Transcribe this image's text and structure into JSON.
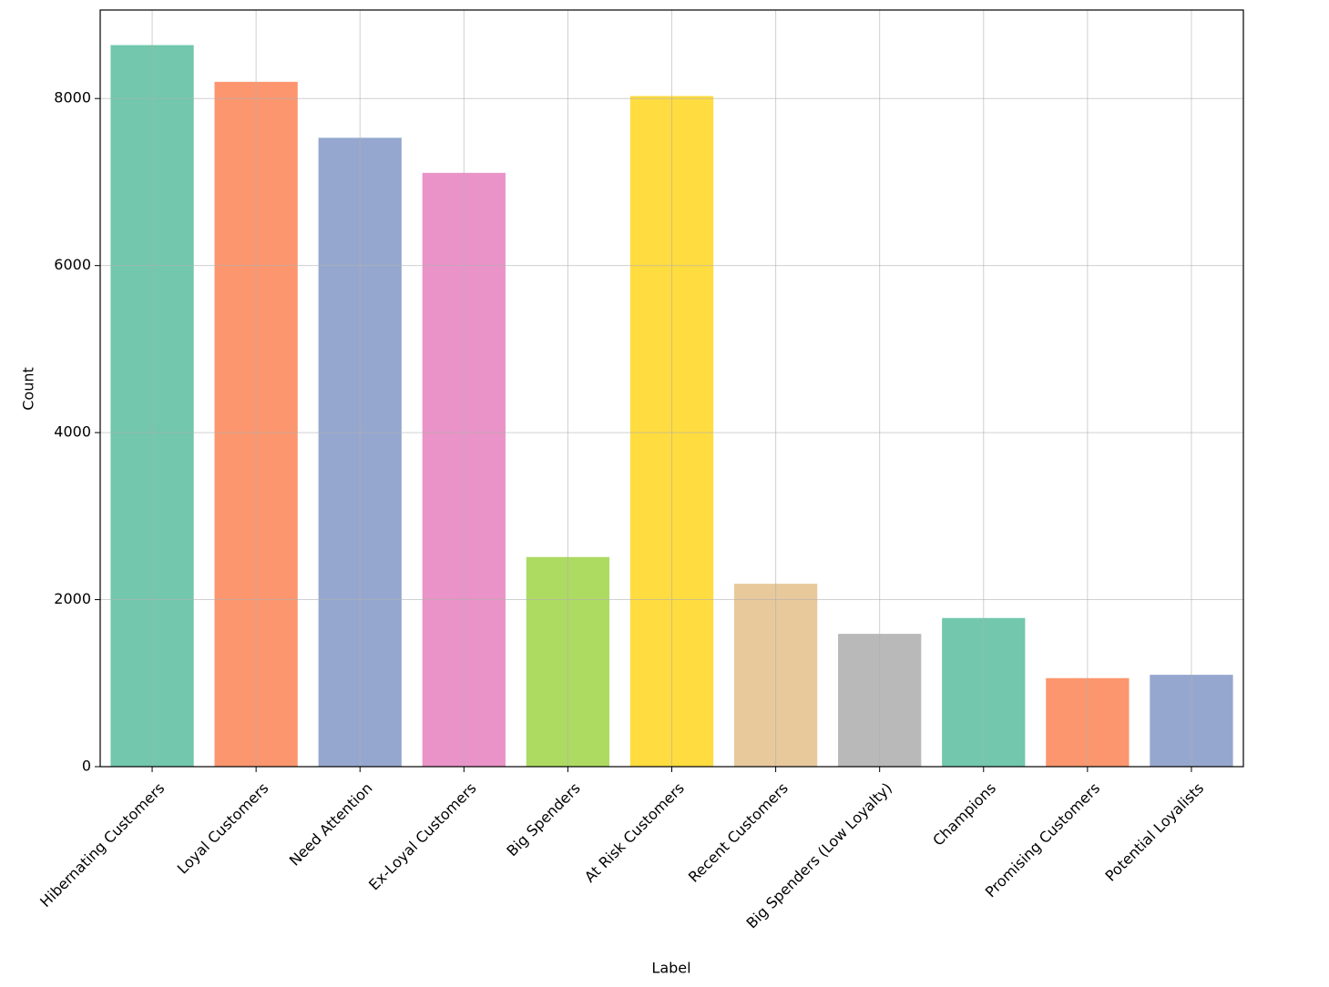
{
  "chart_data": {
    "type": "bar",
    "x_label": "Label",
    "y_label": "Count",
    "categories": [
      "Hibernating Customers",
      "Loyal Customers",
      "Need Attention",
      "Ex-Loyal Customers",
      "Big Spenders",
      "At Risk Customers",
      "Recent Customers",
      "Big Spenders (Low Loyalty)",
      "Champions",
      "Promising Customers",
      "Potential Loyalists"
    ],
    "values": [
      8640,
      8200,
      7530,
      7110,
      2510,
      8030,
      2190,
      1590,
      1780,
      1060,
      1100
    ],
    "colors": [
      "#66c2a5",
      "#fc8d62",
      "#8da0cb",
      "#e78ac3",
      "#a6d854",
      "#ffd92f",
      "#e5c494",
      "#b3b3b3",
      "#66c2a5",
      "#fc8d62",
      "#8da0cb"
    ],
    "ylim": [
      0,
      9060
    ],
    "yticks": [
      0,
      2000,
      4000,
      6000,
      8000
    ],
    "grid": true
  }
}
